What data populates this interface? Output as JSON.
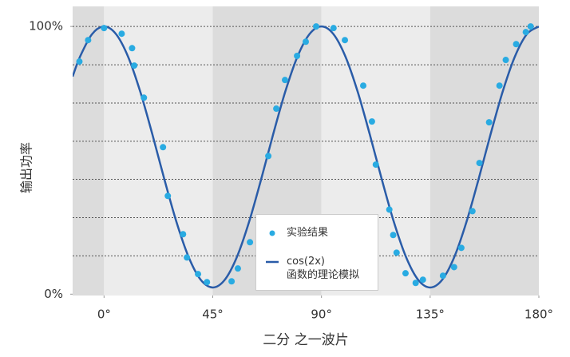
{
  "chart_data": {
    "type": "line",
    "x_label": "二分 之一波片",
    "y_label": "输出功率",
    "xlim": [
      -13,
      180
    ],
    "ylim": [
      -0.5,
      107.5
    ],
    "xticks": [
      {
        "value": 0,
        "label": "0°"
      },
      {
        "value": 45,
        "label": "45°"
      },
      {
        "value": 90,
        "label": "90°"
      },
      {
        "value": 135,
        "label": "135°"
      },
      {
        "value": 180,
        "label": "180°"
      }
    ],
    "yticks": [
      {
        "value": 0,
        "label": "0%"
      },
      {
        "value": 100,
        "label": "100%"
      }
    ],
    "ygrid": [
      14.3,
      28.6,
      42.9,
      57.1,
      71.4,
      85.7,
      100
    ],
    "series": [
      {
        "name": "实验结果",
        "type": "scatter",
        "color": "#29abe2",
        "x": [
          -10.2,
          -6.6,
          0,
          7.3,
          11.6,
          12.5,
          16.5,
          24.4,
          26.4,
          32.7,
          34.3,
          38.9,
          42.6,
          52.8,
          55.4,
          60.4,
          68.0,
          71.3,
          74.9,
          79.9,
          83.5,
          87.8,
          95.0,
          99.7,
          107.3,
          110.9,
          112.5,
          118.1,
          119.7,
          121.1,
          124.8,
          129.0,
          132.0,
          140.3,
          144.9,
          147.9,
          152.5,
          155.4,
          159.4,
          163.7,
          166.3,
          170.6,
          174.6,
          176.6
        ],
        "values": [
          86.9,
          94.9,
          99.4,
          97.3,
          91.9,
          85.4,
          73.4,
          54.9,
          36.7,
          22.4,
          13.7,
          7.5,
          4.5,
          4.8,
          9.6,
          19.4,
          51.6,
          69.3,
          80.0,
          89.0,
          94.3,
          100,
          99.4,
          94.9,
          77.9,
          64.5,
          48.4,
          31.6,
          22.1,
          15.5,
          7.8,
          4.2,
          5.4,
          6.9,
          10.1,
          17.3,
          31.0,
          49.0,
          64.2,
          77.9,
          87.5,
          93.4,
          97.9,
          100
        ]
      },
      {
        "name": "cos(2x)\n函数的理论模拟",
        "type": "line",
        "color": "#2a5ca8",
        "x": [
          -13,
          -10,
          -5,
          0,
          5,
          10,
          15,
          20,
          25,
          30,
          35,
          40,
          45,
          50,
          55,
          60,
          65,
          70,
          75,
          80,
          85,
          90,
          95,
          100,
          105,
          110,
          115,
          120,
          125,
          130,
          135,
          140,
          145,
          150,
          155,
          160,
          165,
          170,
          175,
          180
        ],
        "values": [
          81.3,
          88.6,
          97.1,
          100,
          97.1,
          88.6,
          75.6,
          59.7,
          42.8,
          26.9,
          13.9,
          5.4,
          2.5,
          5.4,
          13.9,
          26.9,
          42.8,
          59.7,
          75.6,
          88.6,
          97.1,
          100,
          97.1,
          88.6,
          75.6,
          59.7,
          42.8,
          26.9,
          13.9,
          5.4,
          2.5,
          5.4,
          13.9,
          26.9,
          42.8,
          59.7,
          75.6,
          88.6,
          97.1,
          100
        ]
      }
    ]
  }
}
